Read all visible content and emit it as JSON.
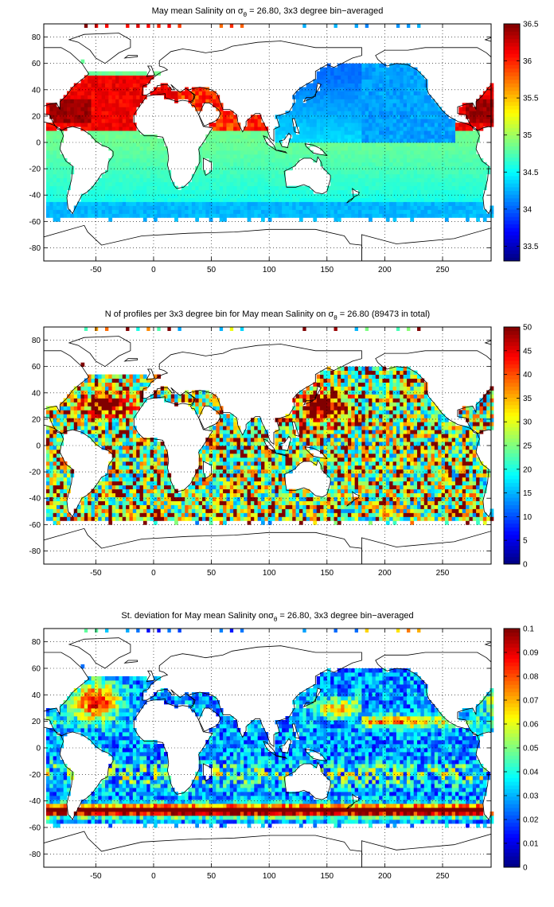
{
  "figure": {
    "background": "#ffffff",
    "colormap": "jet"
  },
  "chart_data": [
    {
      "type": "heatmap",
      "title": {
        "prefix": "May mean Salinity on ",
        "symbol": "σ",
        "sub": "θ",
        "suffix": " = 26.80, 3x3 degree bin−averaged"
      },
      "xlim": [
        -95,
        292
      ],
      "ylim": [
        -90,
        90
      ],
      "xticks": [
        "-50",
        "0",
        "50",
        "100",
        "150",
        "200",
        "250"
      ],
      "yticks": [
        "80",
        "60",
        "40",
        "20",
        "0",
        "-20",
        "-40",
        "-60",
        "-80"
      ],
      "grid": true,
      "bin_size_deg": 3,
      "clim": [
        33.3,
        36.5
      ],
      "colorbar_ticks": [
        "36.5",
        "36",
        "35.5",
        "35",
        "34.5",
        "34",
        "33.5"
      ],
      "pattern": "salinity"
    },
    {
      "type": "heatmap",
      "title": {
        "prefix": "N of profiles per 3x3 degree bin for May mean Salinity on ",
        "symbol": "σ",
        "sub": "θ",
        "suffix": " = 26.80 (89473 in total)"
      },
      "xlim": [
        -95,
        292
      ],
      "ylim": [
        -90,
        90
      ],
      "xticks": [
        "-50",
        "0",
        "50",
        "100",
        "150",
        "200",
        "250"
      ],
      "yticks": [
        "80",
        "60",
        "40",
        "20",
        "0",
        "-20",
        "-40",
        "-60",
        "-80"
      ],
      "grid": true,
      "bin_size_deg": 3,
      "clim": [
        0,
        50
      ],
      "colorbar_ticks": [
        "50",
        "45",
        "40",
        "35",
        "30",
        "25",
        "20",
        "15",
        "10",
        "5",
        "0"
      ],
      "pattern": "counts"
    },
    {
      "type": "heatmap",
      "title": {
        "prefix": "St. deviation for May mean Salinity on",
        "symbol": "σ",
        "sub": "θ",
        "suffix": " = 26.80, 3x3 degree bin−averaged"
      },
      "xlim": [
        -95,
        292
      ],
      "ylim": [
        -90,
        90
      ],
      "xticks": [
        "-50",
        "0",
        "50",
        "100",
        "150",
        "200",
        "250"
      ],
      "yticks": [
        "80",
        "60",
        "40",
        "20",
        "0",
        "-20",
        "-40",
        "-60",
        "-80"
      ],
      "grid": true,
      "bin_size_deg": 3,
      "clim": [
        0,
        0.1
      ],
      "colorbar_ticks": [
        "0.1",
        "0.09",
        "0.08",
        "0.07",
        "0.06",
        "0.05",
        "0.04",
        "0.03",
        "0.02",
        "0.01",
        "0"
      ],
      "pattern": "stdev"
    }
  ]
}
